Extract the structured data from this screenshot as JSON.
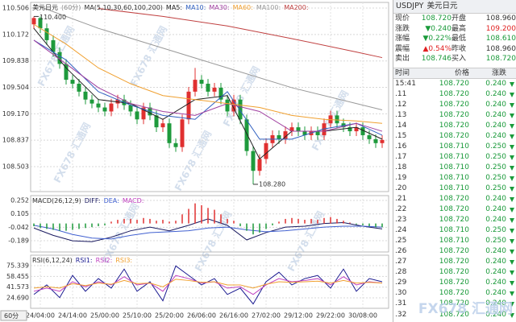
{
  "chart_data": [
    {
      "type": "candlestick",
      "title": "美元日元",
      "period": "(60分)",
      "indicator": "MA(5,10,30,60,100,200)",
      "open": [
        110.3,
        110.38,
        110.25,
        110.1,
        109.95,
        109.8,
        109.6,
        109.55,
        109.45,
        109.35,
        109.3,
        109.25,
        109.2,
        109.3,
        109.35,
        109.28,
        109.2,
        109.1,
        109.25,
        109.15,
        109.0,
        109.05,
        108.8,
        108.75,
        109.1,
        109.45,
        109.6,
        109.55,
        109.45,
        109.5,
        109.35,
        109.2,
        109.35,
        109.1,
        108.7,
        108.45,
        108.6,
        108.8,
        108.9,
        108.85,
        108.95,
        109.0,
        108.95,
        108.9,
        108.95,
        108.9,
        109.05,
        109.15,
        109.05,
        109.0,
        108.95,
        109.0,
        108.9,
        108.85,
        108.8
      ],
      "high": [
        110.4,
        110.4,
        110.31,
        110.16,
        110.01,
        109.86,
        109.66,
        109.61,
        109.51,
        109.41,
        109.36,
        109.31,
        109.36,
        109.41,
        109.41,
        109.34,
        109.26,
        109.31,
        109.31,
        109.21,
        109.11,
        109.11,
        108.86,
        109.16,
        109.51,
        109.75,
        109.66,
        109.61,
        109.56,
        109.56,
        109.41,
        109.41,
        109.41,
        109.16,
        108.76,
        108.66,
        108.86,
        108.96,
        108.96,
        109.01,
        109.06,
        109.06,
        109.01,
        109.01,
        109.01,
        109.11,
        109.21,
        109.21,
        109.11,
        109.06,
        109.06,
        109.06,
        108.96,
        108.91,
        108.9
      ],
      "low": [
        110.24,
        110.19,
        110.04,
        109.89,
        109.74,
        109.54,
        109.49,
        109.39,
        109.29,
        109.24,
        109.19,
        109.14,
        109.14,
        109.24,
        109.22,
        109.14,
        109.04,
        109.04,
        109.09,
        108.94,
        108.94,
        108.74,
        108.69,
        108.69,
        109.04,
        109.39,
        109.49,
        109.39,
        109.39,
        109.29,
        109.14,
        109.14,
        109.04,
        108.64,
        108.28,
        108.39,
        108.54,
        108.74,
        108.79,
        108.79,
        108.89,
        108.89,
        108.84,
        108.84,
        108.84,
        108.84,
        108.99,
        108.99,
        108.94,
        108.89,
        108.89,
        108.84,
        108.79,
        108.74,
        108.74
      ],
      "close": [
        110.38,
        110.25,
        110.1,
        109.95,
        109.8,
        109.6,
        109.55,
        109.45,
        109.35,
        109.3,
        109.25,
        109.2,
        109.3,
        109.35,
        109.28,
        109.2,
        109.1,
        109.25,
        109.15,
        109.0,
        109.05,
        108.8,
        108.75,
        109.1,
        109.45,
        109.6,
        109.55,
        109.45,
        109.5,
        109.35,
        109.2,
        109.35,
        109.1,
        108.7,
        108.45,
        108.6,
        108.8,
        108.9,
        108.85,
        108.95,
        109.0,
        108.95,
        108.9,
        108.95,
        108.9,
        109.05,
        109.15,
        109.05,
        109.0,
        108.95,
        109.0,
        108.9,
        108.85,
        108.8,
        108.84
      ],
      "up_color": "#e03030",
      "down_color": "#1e9a3c",
      "high_label": "110.400",
      "low_label": "108.280",
      "ylim": [
        108.188,
        110.577
      ],
      "yticks": [
        110.506,
        110.172,
        109.838,
        109.504,
        {
          "value": 109.17,
          "label": "109.170"
        },
        108.837,
        108.503
      ],
      "xticks": [
        {
          "value": 1,
          "label": "24/04:00"
        },
        {
          "value": 6,
          "label": "24/14:00"
        },
        {
          "value": 11,
          "label": "25/00:00"
        },
        {
          "value": 16,
          "label": "25/10:00"
        },
        {
          "value": 21,
          "label": "25/20:00"
        },
        {
          "value": 26,
          "label": "26/06:00"
        },
        {
          "value": 31,
          "label": "26/16:00"
        },
        {
          "value": 36,
          "label": "27/02:00"
        },
        {
          "value": 41,
          "label": "29/12:00"
        },
        {
          "value": 46,
          "label": "29/22:00"
        },
        {
          "value": 51,
          "label": "30/08:00"
        }
      ],
      "series": [
        {
          "name": "MA5:",
          "color": "#222222",
          "x": [
            0,
            5,
            10,
            15,
            20,
            25,
            30,
            35,
            40,
            45,
            50,
            54
          ],
          "values": [
            110.25,
            109.75,
            109.35,
            109.3,
            109.1,
            109.35,
            109.4,
            108.6,
            108.95,
            108.95,
            109.0,
            108.85
          ]
        },
        {
          "name": "MA10:",
          "color": "#3060c0",
          "x": [
            0,
            5,
            10,
            15,
            20,
            25,
            30,
            35,
            40,
            45,
            50,
            54
          ],
          "values": [
            110.1,
            109.85,
            109.45,
            109.28,
            109.15,
            109.1,
            109.45,
            108.85,
            108.85,
            108.98,
            109.05,
            108.9
          ]
        },
        {
          "name": "MA30:",
          "color": "#a040a0",
          "x": [
            0,
            5,
            10,
            15,
            20,
            25,
            30,
            35,
            40,
            45,
            50,
            54
          ],
          "values": [
            110.1,
            109.8,
            109.5,
            109.3,
            109.2,
            109.15,
            109.3,
            109.2,
            108.95,
            108.95,
            109.05,
            108.95
          ]
        },
        {
          "name": "MA60:",
          "color": "#f0a030",
          "x": [
            0,
            5,
            10,
            15,
            20,
            25,
            30,
            35,
            40,
            45,
            50,
            54
          ],
          "values": [
            110.3,
            110.05,
            109.75,
            109.55,
            109.4,
            109.35,
            109.3,
            109.25,
            109.15,
            109.1,
            109.08,
            109.05
          ]
        },
        {
          "name": "MA100:",
          "color": "#999999",
          "x": [
            0,
            10,
            20,
            30,
            40,
            50,
            54
          ],
          "values": [
            110.55,
            110.25,
            110.0,
            109.75,
            109.5,
            109.3,
            109.22
          ]
        },
        {
          "name": "MA200:",
          "color": "#c04040",
          "x": [
            10,
            20,
            30,
            40,
            50,
            54
          ],
          "values": [
            110.5,
            110.4,
            110.28,
            110.12,
            109.95,
            109.88
          ]
        }
      ]
    },
    {
      "type": "macd",
      "title": "MACD(26,12,9)",
      "up_color": "#e03030",
      "down_color": "#1e9a3c",
      "ylim": [
        -0.312,
        0.305
      ],
      "yticks": [
        0.252,
        0.105,
        -0.042,
        -0.189
      ],
      "series": [
        {
          "name": "DIFF:",
          "color": "#1a1a60",
          "x": [
            0,
            3,
            6,
            9,
            12,
            15,
            18,
            21,
            24,
            27,
            30,
            33,
            36,
            39,
            42,
            45,
            48,
            51,
            54
          ],
          "values": [
            -0.05,
            -0.13,
            -0.19,
            -0.2,
            -0.15,
            -0.08,
            -0.04,
            -0.08,
            -0.02,
            0.05,
            -0.02,
            -0.18,
            -0.1,
            -0.04,
            -0.03,
            0.0,
            0.01,
            -0.03,
            -0.06
          ]
        },
        {
          "name": "DEA:",
          "color": "#4060d0",
          "x": [
            0,
            3,
            6,
            9,
            12,
            15,
            18,
            21,
            24,
            27,
            30,
            33,
            36,
            39,
            42,
            45,
            48,
            51,
            54
          ],
          "values": [
            -0.02,
            -0.06,
            -0.12,
            -0.16,
            -0.17,
            -0.13,
            -0.1,
            -0.09,
            -0.08,
            -0.05,
            -0.04,
            -0.07,
            -0.09,
            -0.08,
            -0.06,
            -0.04,
            -0.03,
            -0.03,
            -0.04
          ]
        },
        {
          "name": "MACD:",
          "color": "#c040c0",
          "type": "bar",
          "values": [
            -0.03,
            -0.05,
            -0.06,
            -0.07,
            -0.08,
            -0.08,
            -0.07,
            -0.06,
            -0.05,
            -0.04,
            -0.03,
            -0.02,
            0.02,
            0.04,
            0.05,
            0.05,
            0.04,
            0.06,
            0.05,
            0.03,
            0.04,
            0.02,
            0.03,
            0.1,
            0.16,
            0.22,
            0.2,
            0.17,
            0.15,
            0.1,
            0.05,
            0.03,
            -0.03,
            -0.08,
            -0.12,
            -0.1,
            -0.06,
            -0.02,
            0.02,
            0.05,
            0.06,
            0.05,
            0.04,
            0.05,
            0.04,
            0.06,
            0.07,
            0.05,
            0.03,
            0.01,
            -0.01,
            -0.02,
            -0.03,
            -0.04,
            -0.04
          ]
        }
      ]
    },
    {
      "type": "line",
      "title": "RSI(6,12,24)",
      "ylim": [
        8.11,
        91.92
      ],
      "yticks": [
        75.339,
        58.455,
        41.573,
        {
          "value": 24.69,
          "label": "24.690"
        }
      ],
      "series": [
        {
          "name": "RSI1:",
          "color": "#1a1a90",
          "x": [
            0,
            2,
            4,
            6,
            8,
            10,
            12,
            14,
            16,
            18,
            20,
            22,
            24,
            26,
            28,
            30,
            32,
            34,
            36,
            38,
            40,
            42,
            44,
            46,
            48,
            50,
            52,
            54
          ],
          "values": [
            30,
            45,
            25,
            60,
            35,
            55,
            40,
            70,
            35,
            50,
            20,
            75,
            60,
            45,
            55,
            30,
            40,
            15,
            50,
            65,
            45,
            55,
            60,
            40,
            70,
            35,
            55,
            50
          ]
        },
        {
          "name": "RSI2:",
          "color": "#c040c0",
          "x": [
            0,
            2,
            4,
            6,
            8,
            10,
            12,
            14,
            16,
            18,
            20,
            22,
            24,
            26,
            28,
            30,
            32,
            34,
            36,
            38,
            40,
            42,
            44,
            46,
            48,
            50,
            52,
            54
          ],
          "values": [
            35,
            40,
            35,
            50,
            42,
            50,
            45,
            58,
            45,
            48,
            35,
            60,
            55,
            48,
            50,
            40,
            42,
            30,
            45,
            55,
            50,
            52,
            55,
            45,
            58,
            45,
            50,
            48
          ]
        },
        {
          "name": "RSI3:",
          "color": "#f0a030",
          "x": [
            0,
            2,
            4,
            6,
            8,
            10,
            12,
            14,
            16,
            18,
            20,
            22,
            24,
            26,
            28,
            30,
            32,
            34,
            36,
            38,
            40,
            42,
            44,
            46,
            48,
            50,
            52,
            54
          ],
          "values": [
            40,
            42,
            40,
            47,
            44,
            48,
            46,
            52,
            47,
            48,
            42,
            54,
            52,
            49,
            50,
            45,
            45,
            40,
            46,
            50,
            49,
            50,
            51,
            48,
            52,
            48,
            49,
            48
          ]
        }
      ]
    }
  ],
  "footer_label": "60分",
  "watermark": "FX678 汇通网",
  "quote_panel": {
    "symbol": "USDJPY",
    "name": "美元日元",
    "rows": [
      [
        "现价",
        "108.720",
        "开盘",
        "108.960"
      ],
      [
        "涨跌",
        "▼0.240",
        "最高",
        "109.200"
      ],
      [
        "涨幅",
        "▼0.22%",
        "最低",
        "108.610"
      ],
      [
        "震幅",
        "▲0.54%",
        "昨收",
        "108.960"
      ],
      [
        "卖出",
        "108.746",
        "买入",
        "108.720"
      ]
    ],
    "colors": [
      [
        "#333333",
        "#1a9a3a",
        "#333333",
        "#333333"
      ],
      [
        "#333333",
        "#1a9a3a",
        "#333333",
        "#e02020"
      ],
      [
        "#333333",
        "#1a9a3a",
        "#333333",
        "#1a9a3a"
      ],
      [
        "#333333",
        "#e02020",
        "#333333",
        "#333333"
      ],
      [
        "#333333",
        "#1a9a3a",
        "#333333",
        "#1a9a3a"
      ]
    ]
  },
  "trades": {
    "headers": [
      "时间",
      "价格",
      "涨跌"
    ],
    "color": "#1a9a3a",
    "rows": [
      [
        "15:41",
        "108.720",
        "0.240"
      ],
      [
        ".11",
        "108.720",
        "0.240"
      ],
      [
        ".12",
        "108.720",
        "0.240"
      ],
      [
        ".13",
        "108.720",
        "0.240"
      ],
      [
        ".14",
        "108.720",
        "0.240"
      ],
      [
        ".15",
        "108.720",
        "0.240"
      ],
      [
        ".16",
        "108.710",
        "0.250"
      ],
      [
        ".17",
        "108.710",
        "0.250"
      ],
      [
        ".18",
        "108.710",
        "0.250"
      ],
      [
        ".19",
        "108.710",
        "0.250"
      ],
      [
        ".20",
        "108.710",
        "0.250"
      ],
      [
        ".21",
        "108.720",
        "0.240"
      ],
      [
        ".22",
        "108.720",
        "0.240"
      ],
      [
        ".23",
        "108.720",
        "0.240"
      ],
      [
        ".24",
        "108.710",
        "0.250"
      ],
      [
        ".25",
        "108.710",
        "0.250"
      ],
      [
        ".26",
        "108.720",
        "0.240"
      ],
      [
        ".27",
        "108.720",
        "0.240"
      ],
      [
        ".28",
        "108.720",
        "0.240"
      ],
      [
        ".29",
        "108.720",
        "0.240"
      ],
      [
        ".30",
        "108.720",
        "0.240"
      ],
      [
        ".31",
        "108.720",
        "0.240"
      ],
      [
        ".32",
        "108.720",
        "0.240"
      ]
    ]
  }
}
